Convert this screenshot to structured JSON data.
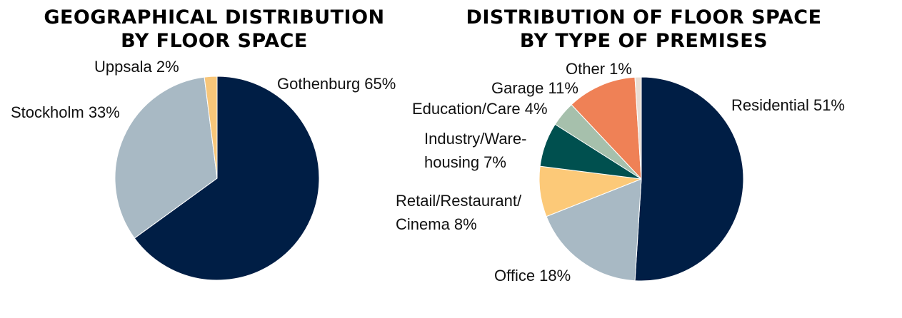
{
  "chart_data": [
    {
      "type": "pie",
      "title_lines": [
        "GEOGRAPHICAL DISTRIBUTION",
        "BY FLOOR SPACE"
      ],
      "slices": [
        {
          "label": "Gothenburg 65%",
          "value": 65,
          "color": "#001e45"
        },
        {
          "label": "Stockholm 33%",
          "value": 33,
          "color": "#a8b9c4"
        },
        {
          "label": "Uppsala 2%",
          "value": 2,
          "color": "#f8c679"
        }
      ],
      "direction": "clockwise",
      "start": "12 o'clock"
    },
    {
      "type": "pie",
      "title_lines": [
        "DISTRIBUTION OF FLOOR SPACE",
        "BY TYPE OF PREMISES"
      ],
      "slices": [
        {
          "label": "Residential 51%",
          "value": 51,
          "color": "#001e45"
        },
        {
          "label": "Office 18%",
          "value": 18,
          "color": "#a8b9c4"
        },
        {
          "label": "Retail/Restaurant/\nCinema 8%",
          "value": 8,
          "color": "#fcc978"
        },
        {
          "label": "Industry/Ware-\nhousing 7%",
          "value": 7,
          "color": "#00504f"
        },
        {
          "label": "Education/Care 4%",
          "value": 4,
          "color": "#a6c0ac"
        },
        {
          "label": "Garage 11%",
          "value": 11,
          "color": "#ef8156"
        },
        {
          "label": "Other 1%",
          "value": 1,
          "color": "#e9ddd3"
        }
      ],
      "direction": "clockwise",
      "start": "12 o'clock"
    }
  ]
}
